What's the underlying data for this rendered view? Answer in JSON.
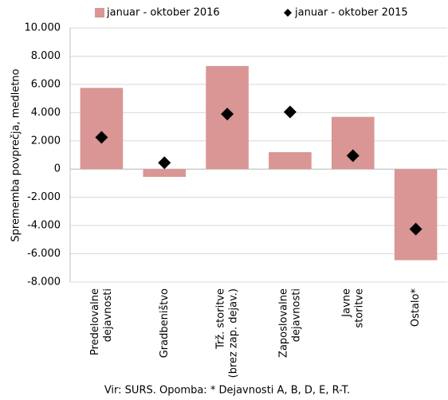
{
  "chart_data": {
    "type": "bar",
    "y_label": "Sprememba povprečja, medletno",
    "note": "Vir: SURS. Opomba: * Dejavnosti A, B, D, E, R-T.",
    "categories": [
      [
        "Predelovalne",
        "dejavnosti"
      ],
      [
        "Gradbeništvo"
      ],
      [
        "Trž. storitve",
        "(brez zap. dejav.)"
      ],
      [
        "Zaposlovalne",
        "dejavnosti"
      ],
      [
        "Javne",
        "storitve"
      ],
      [
        "Ostalo*"
      ]
    ],
    "series": [
      {
        "name": "januar - oktober 2016",
        "color": "#d99694",
        "kind": "bar",
        "values": [
          5750,
          -550,
          7300,
          1200,
          3700,
          -6450
        ]
      },
      {
        "name": "januar - oktober 2015",
        "color": "#000000",
        "kind": "diamond",
        "values": [
          2250,
          450,
          3900,
          4050,
          950,
          -4250
        ]
      }
    ],
    "ylim": [
      -8000,
      10000
    ],
    "yticks": [
      {
        "value": -8000,
        "label": "-8.000"
      },
      {
        "value": -6000,
        "label": "-6.000"
      },
      {
        "value": -4000,
        "label": "-4.000"
      },
      {
        "value": -2000,
        "label": "-2.000"
      },
      0,
      {
        "value": 2000,
        "label": "2.000"
      },
      {
        "value": 4000,
        "label": "4.000"
      },
      {
        "value": 6000,
        "label": "6.000"
      },
      {
        "value": 8000,
        "label": "8.000"
      },
      {
        "value": 10000,
        "label": "10.000"
      }
    ],
    "grid": true
  }
}
